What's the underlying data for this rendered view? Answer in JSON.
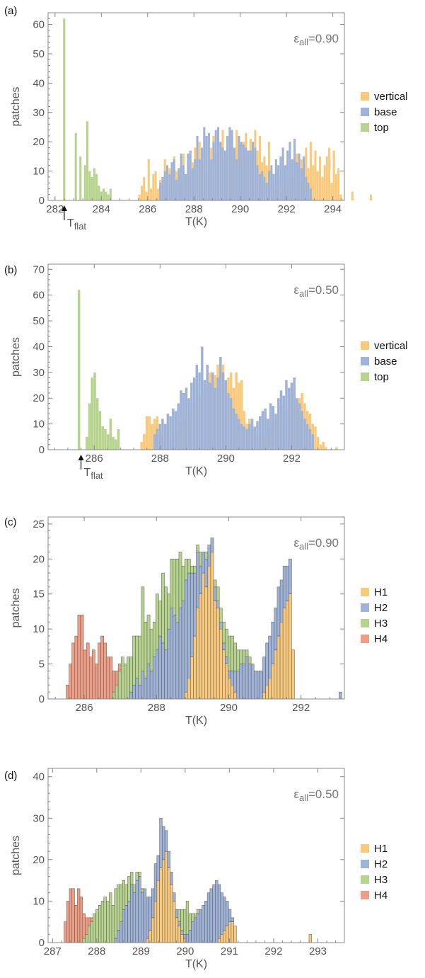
{
  "colors": {
    "vertical": "#f9c97c",
    "base": "#9fb3d8",
    "top": "#b7d48e",
    "H1": "#f9c97c",
    "H2": "#9fb3d8",
    "H3": "#b7d48e",
    "H4": "#ef9e86",
    "axis": "#888888",
    "text": "#555555"
  },
  "chart_data": [
    {
      "type": "bar",
      "panel_label": "(a)",
      "ylabel": "patches",
      "xlabel": "T(K)",
      "annotation": "εall=0.90",
      "annotation_sym": "ε",
      "annotation_sub": "all",
      "annotation_val": "=0.90",
      "marker_label": "T",
      "marker_sub": "flat",
      "marker_x": 282.4,
      "xlim": [
        281.7,
        294.5
      ],
      "ylim": [
        0,
        64
      ],
      "xticks": [
        282,
        284,
        286,
        288,
        290,
        292,
        294
      ],
      "yticks": [
        0,
        10,
        20,
        30,
        40,
        50,
        60
      ],
      "stacked": false,
      "series": [
        {
          "name": "vertical",
          "color_key": "vertical",
          "x_start": 285.6,
          "bin": 0.1,
          "values": [
            2,
            5,
            8,
            3,
            14,
            4,
            9,
            10,
            4,
            7,
            8,
            14,
            4,
            11,
            8,
            15,
            10,
            6,
            3,
            16,
            8,
            12,
            10,
            13,
            18,
            15,
            20,
            13,
            21,
            9,
            14,
            18,
            22,
            16,
            12,
            20,
            24,
            14,
            18,
            21,
            22,
            16,
            24,
            12,
            19,
            20,
            23,
            17,
            21,
            16,
            24,
            17,
            22,
            13,
            15,
            12,
            20,
            10,
            6,
            4,
            8,
            5,
            3,
            7,
            6,
            10,
            8,
            12,
            16,
            9,
            14,
            15,
            18,
            11,
            20,
            12,
            17,
            10,
            15,
            8,
            12,
            15,
            18,
            6,
            17,
            9,
            11,
            2,
            0,
            0,
            0,
            0,
            3,
            0,
            0,
            0,
            0,
            0,
            0,
            0,
            2
          ]
        },
        {
          "name": "base",
          "color_key": "base",
          "x_start": 286.5,
          "bin": 0.1,
          "values": [
            6,
            8,
            10,
            12,
            9,
            13,
            14,
            7,
            11,
            16,
            12,
            9,
            16,
            17,
            11,
            14,
            22,
            14,
            18,
            25,
            22,
            23,
            14,
            20,
            24,
            25,
            20,
            18,
            17,
            22,
            25,
            24,
            18,
            14,
            22,
            20,
            19,
            18,
            17,
            17,
            20,
            18,
            12,
            9,
            10,
            8,
            6,
            10,
            12,
            9,
            14,
            12,
            15,
            18,
            12,
            17,
            20,
            14,
            21,
            13,
            16,
            11,
            15,
            8,
            6,
            4
          ]
        },
        {
          "name": "top",
          "color_key": "top",
          "x_start": 282.35,
          "bin": 0.1,
          "values": [
            62,
            0,
            0,
            0,
            0,
            23,
            0,
            15,
            0,
            12,
            27,
            10,
            8,
            11,
            9,
            5,
            3,
            4,
            3,
            2,
            4
          ]
        }
      ],
      "legend": [
        "vertical",
        "base",
        "top"
      ]
    },
    {
      "type": "bar",
      "panel_label": "(b)",
      "ylabel": "patches",
      "xlabel": "T(K)",
      "annotation_sym": "ε",
      "annotation_sub": "all",
      "annotation_val": "=0.50",
      "marker_label": "T",
      "marker_sub": "flat",
      "marker_x": 285.6,
      "xlim": [
        284.6,
        293.6
      ],
      "ylim": [
        0,
        72
      ],
      "xticks": [
        286,
        288,
        290,
        292
      ],
      "yticks": [
        0,
        10,
        20,
        30,
        40,
        50,
        60,
        70
      ],
      "stacked": false,
      "series": [
        {
          "name": "vertical",
          "color_key": "vertical",
          "x_start": 287.4,
          "bin": 0.08,
          "values": [
            3,
            6,
            13,
            13,
            10,
            12,
            13,
            8,
            6,
            10,
            14,
            4,
            12,
            6,
            8,
            11,
            13,
            12,
            14,
            16,
            18,
            19,
            21,
            22,
            24,
            28,
            30,
            27,
            29,
            33,
            31,
            33,
            26,
            28,
            30,
            24,
            30,
            26,
            27,
            15,
            10,
            12,
            8,
            6,
            5,
            9,
            7,
            5,
            8,
            10,
            11,
            12,
            13,
            17,
            14,
            15,
            18,
            21,
            24,
            16,
            20,
            22,
            18,
            15,
            14,
            10,
            9,
            5,
            2,
            3,
            1,
            0,
            0,
            0,
            1
          ]
        },
        {
          "name": "base",
          "color_key": "base",
          "x_start": 287.8,
          "bin": 0.08,
          "values": [
            6,
            8,
            10,
            12,
            10,
            14,
            13,
            16,
            15,
            18,
            23,
            22,
            24,
            20,
            26,
            28,
            33,
            30,
            40,
            27,
            33,
            26,
            30,
            24,
            28,
            36,
            30,
            27,
            22,
            20,
            16,
            14,
            12,
            10,
            9,
            8,
            10,
            12,
            9,
            11,
            13,
            15,
            16,
            12,
            18,
            17,
            14,
            20,
            23,
            21,
            27,
            24,
            26,
            28,
            20,
            18,
            15,
            12,
            10,
            8,
            6
          ]
        },
        {
          "name": "top",
          "color_key": "top",
          "x_start": 285.5,
          "bin": 0.08,
          "values": [
            62,
            0,
            0,
            5,
            18,
            28,
            30,
            20,
            15,
            9,
            8,
            6,
            12,
            5,
            4,
            8
          ]
        }
      ],
      "legend": [
        "vertical",
        "base",
        "top"
      ]
    },
    {
      "type": "bar",
      "panel_label": "(c)",
      "ylabel": "patches",
      "xlabel": "T(K)",
      "annotation_sym": "ε",
      "annotation_sub": "all",
      "annotation_val": "=0.90",
      "xlim": [
        285.0,
        293.2
      ],
      "ylim": [
        0,
        26
      ],
      "xticks": [
        286,
        288,
        290,
        292
      ],
      "yticks": [
        0,
        5,
        10,
        15,
        20,
        25
      ],
      "stacked": true,
      "x_start": 285.5,
      "bin": 0.08,
      "series": [
        {
          "name": "H1",
          "color_key": "H1",
          "values": [
            0,
            0,
            0,
            0,
            0,
            0,
            0,
            0,
            0,
            0,
            0,
            0,
            0,
            0,
            0,
            0,
            0,
            0,
            0,
            0,
            0,
            0,
            0,
            0,
            0,
            0,
            0,
            0,
            0,
            0,
            0,
            0,
            0,
            0,
            0,
            0,
            0,
            0,
            0,
            0,
            0,
            1,
            3,
            6,
            9,
            13,
            15,
            18,
            16,
            19,
            21,
            14,
            13,
            10,
            7,
            5,
            3,
            2,
            1,
            0,
            0,
            0,
            0,
            0,
            0,
            0,
            0,
            0,
            1,
            2,
            3,
            5,
            7,
            9,
            11,
            13,
            14,
            15,
            7,
            0
          ]
        },
        {
          "name": "H2",
          "color_key": "H2",
          "values": [
            0,
            0,
            0,
            0,
            0,
            0,
            0,
            0,
            0,
            0,
            0,
            0,
            0,
            0,
            0,
            0,
            0,
            0,
            0,
            0,
            0,
            0,
            1,
            2,
            3,
            2,
            4,
            3,
            5,
            4,
            6,
            7,
            9,
            8,
            7,
            10,
            13,
            12,
            11,
            13,
            14,
            16,
            15,
            12,
            9,
            8,
            4,
            3,
            4,
            3,
            2,
            2,
            1,
            1,
            1,
            1,
            1,
            2,
            3,
            4,
            5,
            5,
            6,
            5,
            5,
            4,
            4,
            4,
            5,
            6,
            6,
            6,
            6,
            7,
            6,
            6,
            5,
            5,
            0,
            0
          ]
        },
        {
          "name": "H3",
          "color_key": "H3",
          "values": [
            0,
            0,
            0,
            0,
            0,
            0,
            0,
            0,
            0,
            0,
            0,
            0,
            0,
            0,
            0,
            0,
            1,
            2,
            4,
            6,
            5,
            6,
            5,
            7,
            6,
            7,
            12,
            8,
            7,
            6,
            5,
            8,
            5,
            10,
            9,
            5,
            7,
            8,
            9,
            8,
            5,
            3,
            2,
            1,
            1,
            1,
            2,
            0,
            1,
            0,
            0,
            1,
            2,
            2,
            3,
            4,
            5,
            5,
            4,
            3,
            2,
            2,
            1,
            1,
            0,
            0,
            0,
            0,
            0,
            0,
            0,
            0,
            0,
            0,
            0,
            0,
            0,
            0,
            0,
            0
          ]
        },
        {
          "name": "H4",
          "color_key": "H4",
          "values": [
            2,
            5,
            8,
            9,
            12,
            12,
            7,
            8,
            6,
            7,
            5,
            8,
            9,
            8,
            6,
            6,
            3,
            2,
            1,
            0,
            0,
            0,
            0,
            0,
            0,
            0,
            0,
            0,
            0,
            0,
            0,
            0,
            0,
            0,
            0,
            0,
            0,
            0,
            0,
            0,
            0,
            0,
            0,
            0,
            0,
            0,
            0,
            0,
            0,
            0,
            0,
            0,
            0,
            0,
            0,
            0,
            0,
            0,
            0,
            0,
            0,
            0,
            0,
            0,
            0,
            0,
            0,
            0,
            0,
            0,
            0,
            0,
            0,
            0,
            0,
            0,
            0,
            0,
            0,
            0
          ]
        }
      ],
      "extra": {
        "x": 293.05,
        "value": 1,
        "color_key": "H2"
      },
      "legend": [
        "H1",
        "H2",
        "H3",
        "H4"
      ]
    },
    {
      "type": "bar",
      "panel_label": "(d)",
      "ylabel": "patches",
      "xlabel": "T(K)",
      "annotation_sym": "ε",
      "annotation_sub": "all",
      "annotation_val": "=0.50",
      "xlim": [
        286.9,
        293.6
      ],
      "ylim": [
        0,
        42
      ],
      "xticks": [
        287,
        288,
        289,
        290,
        291,
        292,
        293
      ],
      "yticks": [
        0,
        10,
        20,
        30,
        40
      ],
      "stacked": true,
      "x_start": 287.2,
      "bin": 0.06,
      "series": [
        {
          "name": "H1",
          "color_key": "H1",
          "values": [
            0,
            0,
            0,
            0,
            0,
            0,
            0,
            0,
            0,
            0,
            0,
            0,
            0,
            0,
            0,
            0,
            0,
            0,
            0,
            0,
            0,
            0,
            0,
            0,
            0,
            0,
            0,
            0,
            0,
            0,
            0,
            0,
            1,
            3,
            6,
            10,
            15,
            18,
            20,
            22,
            18,
            14,
            10,
            6,
            4,
            2,
            1,
            0,
            0,
            0,
            0,
            0,
            0,
            0,
            0,
            0,
            0,
            0,
            0,
            1,
            2,
            3,
            4,
            5,
            5,
            4,
            0
          ]
        },
        {
          "name": "H2",
          "color_key": "H2",
          "values": [
            0,
            0,
            0,
            0,
            0,
            0,
            0,
            0,
            0,
            0,
            0,
            0,
            0,
            0,
            0,
            0,
            0,
            0,
            0,
            0,
            1,
            3,
            5,
            8,
            9,
            10,
            14,
            12,
            15,
            16,
            12,
            13,
            10,
            8,
            7,
            9,
            6,
            12,
            8,
            5,
            4,
            3,
            2,
            2,
            1,
            1,
            1,
            2,
            3,
            5,
            6,
            7,
            8,
            9,
            10,
            12,
            13,
            14,
            15,
            13,
            10,
            8,
            6,
            3,
            1,
            0,
            0
          ]
        },
        {
          "name": "H3",
          "color_key": "H3",
          "values": [
            0,
            0,
            0,
            0,
            0,
            0,
            0,
            0,
            1,
            2,
            4,
            5,
            7,
            8,
            9,
            10,
            11,
            10,
            12,
            9,
            12,
            11,
            9,
            7,
            5,
            6,
            3,
            2,
            2,
            1,
            1,
            0,
            0,
            0,
            0,
            0,
            0,
            0,
            0,
            0,
            0,
            0,
            0,
            0,
            3,
            5,
            6,
            8,
            4,
            2,
            1,
            1,
            0,
            0,
            0,
            0,
            0,
            0,
            0,
            0,
            0,
            0,
            0,
            0,
            0,
            0,
            0
          ]
        },
        {
          "name": "H4",
          "color_key": "H4",
          "values": [
            0,
            5,
            10,
            13,
            13,
            9,
            13,
            11,
            6,
            4,
            2,
            1,
            0,
            0,
            0,
            0,
            0,
            0,
            0,
            0,
            0,
            0,
            0,
            0,
            0,
            0,
            0,
            0,
            0,
            0,
            0,
            0,
            0,
            0,
            0,
            0,
            0,
            0,
            0,
            0,
            0,
            0,
            0,
            0,
            0,
            0,
            0,
            0,
            0,
            0,
            0,
            0,
            0,
            0,
            0,
            0,
            0,
            0,
            0,
            0,
            0,
            0,
            0,
            0,
            0,
            0,
            0
          ]
        }
      ],
      "extra": {
        "x": 292.8,
        "value": 2,
        "color_key": "H1"
      },
      "legend": [
        "H1",
        "H2",
        "H3",
        "H4"
      ]
    }
  ]
}
